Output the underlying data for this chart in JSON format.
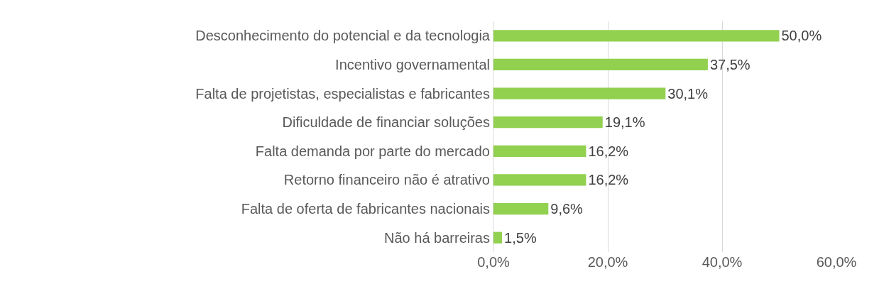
{
  "chart_data": {
    "type": "bar",
    "orientation": "horizontal",
    "categories": [
      "Desconhecimento do potencial e da tecnologia",
      "Incentivo governamental",
      "Falta de projetistas, especialistas e fabricantes",
      "Dificuldade de financiar soluções",
      "Falta demanda por parte do mercado",
      "Retorno financeiro não é atrativo",
      "Falta de oferta de fabricantes nacionais",
      "Não há barreiras"
    ],
    "values": [
      50.0,
      37.5,
      30.1,
      19.1,
      16.2,
      16.2,
      9.6,
      1.5
    ],
    "value_labels": [
      "50,0%",
      "37,5%",
      "30,1%",
      "19,1%",
      "16,2%",
      "16,2%",
      "9,6%",
      "1,5%"
    ],
    "color": "#92d050",
    "xlim": [
      0,
      60
    ],
    "xticks": [
      {
        "value": 0,
        "label": "0,0%"
      },
      {
        "value": 20,
        "label": "20,0%"
      },
      {
        "value": 40,
        "label": "40,0%"
      },
      {
        "value": 60,
        "label": "60,0%"
      }
    ],
    "grid": "x"
  }
}
